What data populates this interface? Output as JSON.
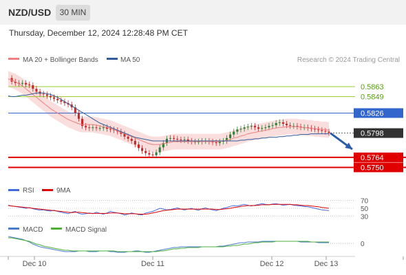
{
  "header": {
    "pair": "NZD/USD",
    "interval": "30 MIN"
  },
  "timestamp": "Thursday, December 12, 2024 12:28:48 PM CET",
  "legend": {
    "ma20": "MA 20 + Bollinger Bands",
    "ma50": "MA 50",
    "rsi": "RSI",
    "nine_ma": "9MA",
    "macd": "MACD",
    "macd_signal": "MACD Signal"
  },
  "credit": "Research © 2024 Trading Central",
  "colors": {
    "ma20": "#f08080",
    "ma50": "#2f5c9c",
    "band": "#f7c8c8",
    "candle_up": "#2e7d32",
    "candle_down": "#c62828",
    "resistance_green": "#9acd32",
    "pivot_blue": "#3366cc",
    "support_red": "#e00000",
    "current": "#333333",
    "rsi": "#4169e1",
    "macd": "#4a7bd0",
    "macd_signal": "#4caf3a"
  },
  "chart_data": [
    {
      "type": "line",
      "title": "",
      "x_ticks": [
        "Dec 10",
        "Dec 11",
        "Dec 12",
        "Dec 13"
      ],
      "ylim": [
        0.5736,
        0.5888
      ],
      "levels": [
        {
          "label": "0.5863",
          "value": 0.5863,
          "kind": "resistance"
        },
        {
          "label": "0.5849",
          "value": 0.5849,
          "kind": "resistance"
        },
        {
          "label": "0.5826",
          "value": 0.5826,
          "kind": "pivot"
        },
        {
          "label": "0.5798",
          "value": 0.5798,
          "kind": "current"
        },
        {
          "label": "0.5764",
          "value": 0.5764,
          "kind": "support"
        },
        {
          "label": "0.5750",
          "value": 0.575,
          "kind": "support"
        }
      ],
      "price_x": [
        0,
        2,
        4,
        6,
        8,
        10,
        12,
        14,
        16,
        18,
        20,
        22,
        24,
        26,
        28,
        30,
        32,
        34,
        36,
        38,
        40,
        42,
        44,
        46,
        48,
        50,
        52,
        54,
        56,
        58,
        60,
        62,
        64,
        66,
        68,
        70,
        72,
        74,
        76,
        78,
        80,
        82,
        84,
        86,
        88,
        90,
        92,
        94,
        96,
        98,
        100,
        102,
        104,
        106,
        108,
        110,
        112,
        114,
        116,
        118,
        120,
        122,
        124,
        126,
        128,
        130,
        132,
        134,
        136,
        138,
        140,
        142,
        144,
        146,
        148,
        150,
        152,
        154,
        156,
        158,
        160,
        162,
        164,
        166,
        168,
        170,
        172,
        174,
        176,
        178,
        180,
        182
      ],
      "price": [
        0.5875,
        0.587,
        0.5868,
        0.5867,
        0.5868,
        0.5866,
        0.5865,
        0.586,
        0.5856,
        0.5853,
        0.5852,
        0.585,
        0.5848,
        0.5846,
        0.5844,
        0.5842,
        0.584,
        0.5838,
        0.5834,
        0.5826,
        0.5818,
        0.5808,
        0.5806,
        0.5805,
        0.5806,
        0.5805,
        0.5805,
        0.5806,
        0.5804,
        0.5803,
        0.5802,
        0.58,
        0.5797,
        0.5793,
        0.579,
        0.5787,
        0.5782,
        0.5777,
        0.5773,
        0.577,
        0.5768,
        0.5767,
        0.5771,
        0.5778,
        0.5784,
        0.579,
        0.5791,
        0.579,
        0.5789,
        0.5788,
        0.5789,
        0.5787,
        0.5786,
        0.5786,
        0.5786,
        0.5787,
        0.5787,
        0.5786,
        0.5785,
        0.5784,
        0.5786,
        0.5787,
        0.5791,
        0.5796,
        0.58,
        0.5803,
        0.5804,
        0.5806,
        0.5807,
        0.5808,
        0.5806,
        0.5804,
        0.5805,
        0.5806,
        0.5808,
        0.5809,
        0.5812,
        0.5813,
        0.5811,
        0.5809,
        0.5808,
        0.5808,
        0.5807,
        0.5806,
        0.5806,
        0.5805,
        0.5804,
        0.5803,
        0.5802,
        0.5801,
        0.58,
        0.5798
      ],
      "ma20": [
        0.5874,
        0.5872,
        0.587,
        0.5867,
        0.5864,
        0.586,
        0.5856,
        0.5852,
        0.5848,
        0.5844,
        0.584,
        0.5836,
        0.5832,
        0.5829,
        0.5826,
        0.5823,
        0.582,
        0.5817,
        0.5815,
        0.5813,
        0.5811,
        0.581,
        0.581,
        0.581,
        0.581,
        0.5809,
        0.5808,
        0.5807,
        0.5806,
        0.5805,
        0.5803,
        0.5801,
        0.5799,
        0.5797,
        0.5795,
        0.5793,
        0.5791,
        0.5789,
        0.5787,
        0.5785,
        0.5783,
        0.5782,
        0.5782,
        0.5782,
        0.5783,
        0.5784,
        0.5785,
        0.5786,
        0.5786,
        0.5786,
        0.5786,
        0.5786,
        0.5786,
        0.5786,
        0.5786,
        0.5786,
        0.5786,
        0.5786,
        0.5786,
        0.5786,
        0.5786,
        0.5787,
        0.5788,
        0.5789,
        0.5791,
        0.5792,
        0.5794,
        0.5795,
        0.5797,
        0.5798,
        0.5799,
        0.58,
        0.5801,
        0.5802,
        0.5803,
        0.5804,
        0.5805,
        0.5806,
        0.5806,
        0.5807,
        0.5807,
        0.5807,
        0.5807,
        0.5806,
        0.5806,
        0.5805,
        0.5805,
        0.5804,
        0.5804,
        0.5803,
        0.5803,
        0.5802
      ],
      "ma50": [
        0.585,
        0.5849,
        0.5849,
        0.585,
        0.5851,
        0.5851,
        0.5852,
        0.5853,
        0.5854,
        0.5854,
        0.5854,
        0.5853,
        0.5852,
        0.585,
        0.5848,
        0.5845,
        0.5842,
        0.5839,
        0.5836,
        0.5833,
        0.583,
        0.5827,
        0.5824,
        0.5821,
        0.5818,
        0.5815,
        0.5812,
        0.581,
        0.5808,
        0.5806,
        0.5804,
        0.5802,
        0.58,
        0.5798,
        0.5796,
        0.5794,
        0.5792,
        0.5791,
        0.579,
        0.5789,
        0.5788,
        0.5787,
        0.5787,
        0.5787,
        0.5787,
        0.5787,
        0.5787,
        0.5787,
        0.5787,
        0.5787,
        0.5787,
        0.5787,
        0.5787,
        0.5787,
        0.5787,
        0.5787,
        0.5787,
        0.5787,
        0.5787,
        0.5787,
        0.5787,
        0.5787,
        0.5787,
        0.5787,
        0.5787,
        0.5787,
        0.5788,
        0.5788,
        0.5789,
        0.5789,
        0.579,
        0.579,
        0.5791,
        0.5791,
        0.5792,
        0.5792,
        0.5792,
        0.5793,
        0.5793,
        0.5794,
        0.5794,
        0.5795,
        0.5795,
        0.5796,
        0.5796,
        0.5796,
        0.5797,
        0.5797,
        0.5797,
        0.5797,
        0.5797,
        0.5797
      ],
      "band_width": 0.0011,
      "projection": [
        0.5798,
        0.576
      ]
    },
    {
      "type": "line",
      "title": "RSI",
      "yticks": [
        70,
        50,
        30
      ],
      "ylim": [
        20,
        80
      ],
      "rsi": [
        58,
        56,
        55,
        53,
        52,
        50,
        52,
        49,
        47,
        45,
        46,
        44,
        43,
        45,
        42,
        40,
        38,
        36,
        40,
        42,
        37,
        35,
        36,
        38,
        36,
        40,
        37,
        35,
        38,
        42,
        40,
        38,
        36,
        33,
        35,
        38,
        36,
        34,
        33,
        38,
        40,
        42,
        46,
        50,
        48,
        46,
        47,
        49,
        51,
        48,
        46,
        48,
        50,
        47,
        45,
        49,
        51,
        48,
        46,
        44,
        47,
        50,
        52,
        55,
        57,
        56,
        58,
        60,
        58,
        56,
        58,
        60,
        62,
        60,
        59,
        61,
        62,
        60,
        58,
        59,
        60,
        58,
        57,
        56,
        55,
        54,
        52,
        50,
        48,
        46,
        45,
        44
      ],
      "nine_ma": [
        57,
        56,
        55,
        54,
        53,
        52,
        51,
        50,
        49,
        48,
        47,
        46,
        45,
        44,
        43,
        42,
        41,
        40,
        39,
        40,
        40,
        39,
        38,
        37,
        37,
        37,
        37,
        37,
        37,
        38,
        38,
        38,
        37,
        36,
        36,
        36,
        36,
        35,
        35,
        35,
        36,
        38,
        40,
        42,
        44,
        45,
        46,
        47,
        48,
        48,
        48,
        48,
        48,
        48,
        48,
        48,
        48,
        48,
        48,
        47,
        47,
        48,
        49,
        50,
        52,
        53,
        55,
        56,
        57,
        57,
        57,
        58,
        59,
        59,
        59,
        60,
        60,
        60,
        60,
        60,
        60,
        59,
        59,
        58,
        57,
        57,
        56,
        55,
        54,
        52,
        51,
        50
      ]
    },
    {
      "type": "line",
      "title": "MACD",
      "yticks": [
        0
      ],
      "ylim": [
        -0.0018,
        0.0014
      ],
      "macd": [
        0.001,
        0.0009,
        0.0008,
        0.0007,
        0.0006,
        0.0004,
        0.0002,
        -0.0001,
        -0.0003,
        -0.0005,
        -0.0006,
        -0.0007,
        -0.0008,
        -0.0009,
        -0.001,
        -0.0011,
        -0.0012,
        -0.0012,
        -0.0012,
        -0.0012,
        -0.0011,
        -0.0011,
        -0.0011,
        -0.0012,
        -0.0012,
        -0.0012,
        -0.0011,
        -0.0011,
        -0.0011,
        -0.0012,
        -0.0012,
        -0.0013,
        -0.0013,
        -0.0013,
        -0.0012,
        -0.0012,
        -0.0011,
        -0.0011,
        -0.0012,
        -0.0013,
        -0.0013,
        -0.0012,
        -0.0011,
        -0.001,
        -0.0009,
        -0.0008,
        -0.0007,
        -0.0006,
        -0.0006,
        -0.0005,
        -0.0005,
        -0.0005,
        -0.0005,
        -0.0005,
        -0.0005,
        -0.0005,
        -0.0005,
        -0.0005,
        -0.0005,
        -0.0005,
        -0.0004,
        -0.0004,
        -0.0003,
        -0.0002,
        -0.0001,
        0.0,
        0.0001,
        0.0001,
        0.0002,
        0.0002,
        0.0002,
        0.0002,
        0.0003,
        0.0003,
        0.0003,
        0.0003,
        0.0003,
        0.0003,
        0.0003,
        0.0003,
        0.0003,
        0.0003,
        0.0003,
        0.0002,
        0.0002,
        0.0002,
        0.0002,
        0.0002,
        0.0001,
        0.0001,
        0.0001,
        0.0001
      ],
      "macd_signal": [
        0.0008,
        0.0008,
        0.0007,
        0.0006,
        0.0005,
        0.0004,
        0.0003,
        0.0001,
        -0.0001,
        -0.0002,
        -0.0004,
        -0.0005,
        -0.0006,
        -0.0007,
        -0.0008,
        -0.0009,
        -0.001,
        -0.001,
        -0.0011,
        -0.0011,
        -0.0011,
        -0.0011,
        -0.0011,
        -0.0011,
        -0.0011,
        -0.0011,
        -0.0011,
        -0.0011,
        -0.0011,
        -0.0011,
        -0.0011,
        -0.0012,
        -0.0012,
        -0.0012,
        -0.0012,
        -0.0012,
        -0.0012,
        -0.0012,
        -0.0012,
        -0.0012,
        -0.0012,
        -0.0012,
        -0.0012,
        -0.0011,
        -0.0011,
        -0.001,
        -0.0009,
        -0.0008,
        -0.0008,
        -0.0007,
        -0.0007,
        -0.0006,
        -0.0006,
        -0.0006,
        -0.0006,
        -0.0005,
        -0.0005,
        -0.0005,
        -0.0005,
        -0.0005,
        -0.0005,
        -0.0005,
        -0.0004,
        -0.0004,
        -0.0003,
        -0.0003,
        -0.0002,
        -0.0001,
        -0.0001,
        0.0,
        0.0001,
        0.0001,
        0.0002,
        0.0002,
        0.0002,
        0.0002,
        0.0003,
        0.0003,
        0.0003,
        0.0003,
        0.0003,
        0.0003,
        0.0003,
        0.0003,
        0.0003,
        0.0003,
        0.0002,
        0.0002,
        0.0002,
        0.0002,
        0.0002,
        0.0002
      ]
    }
  ]
}
